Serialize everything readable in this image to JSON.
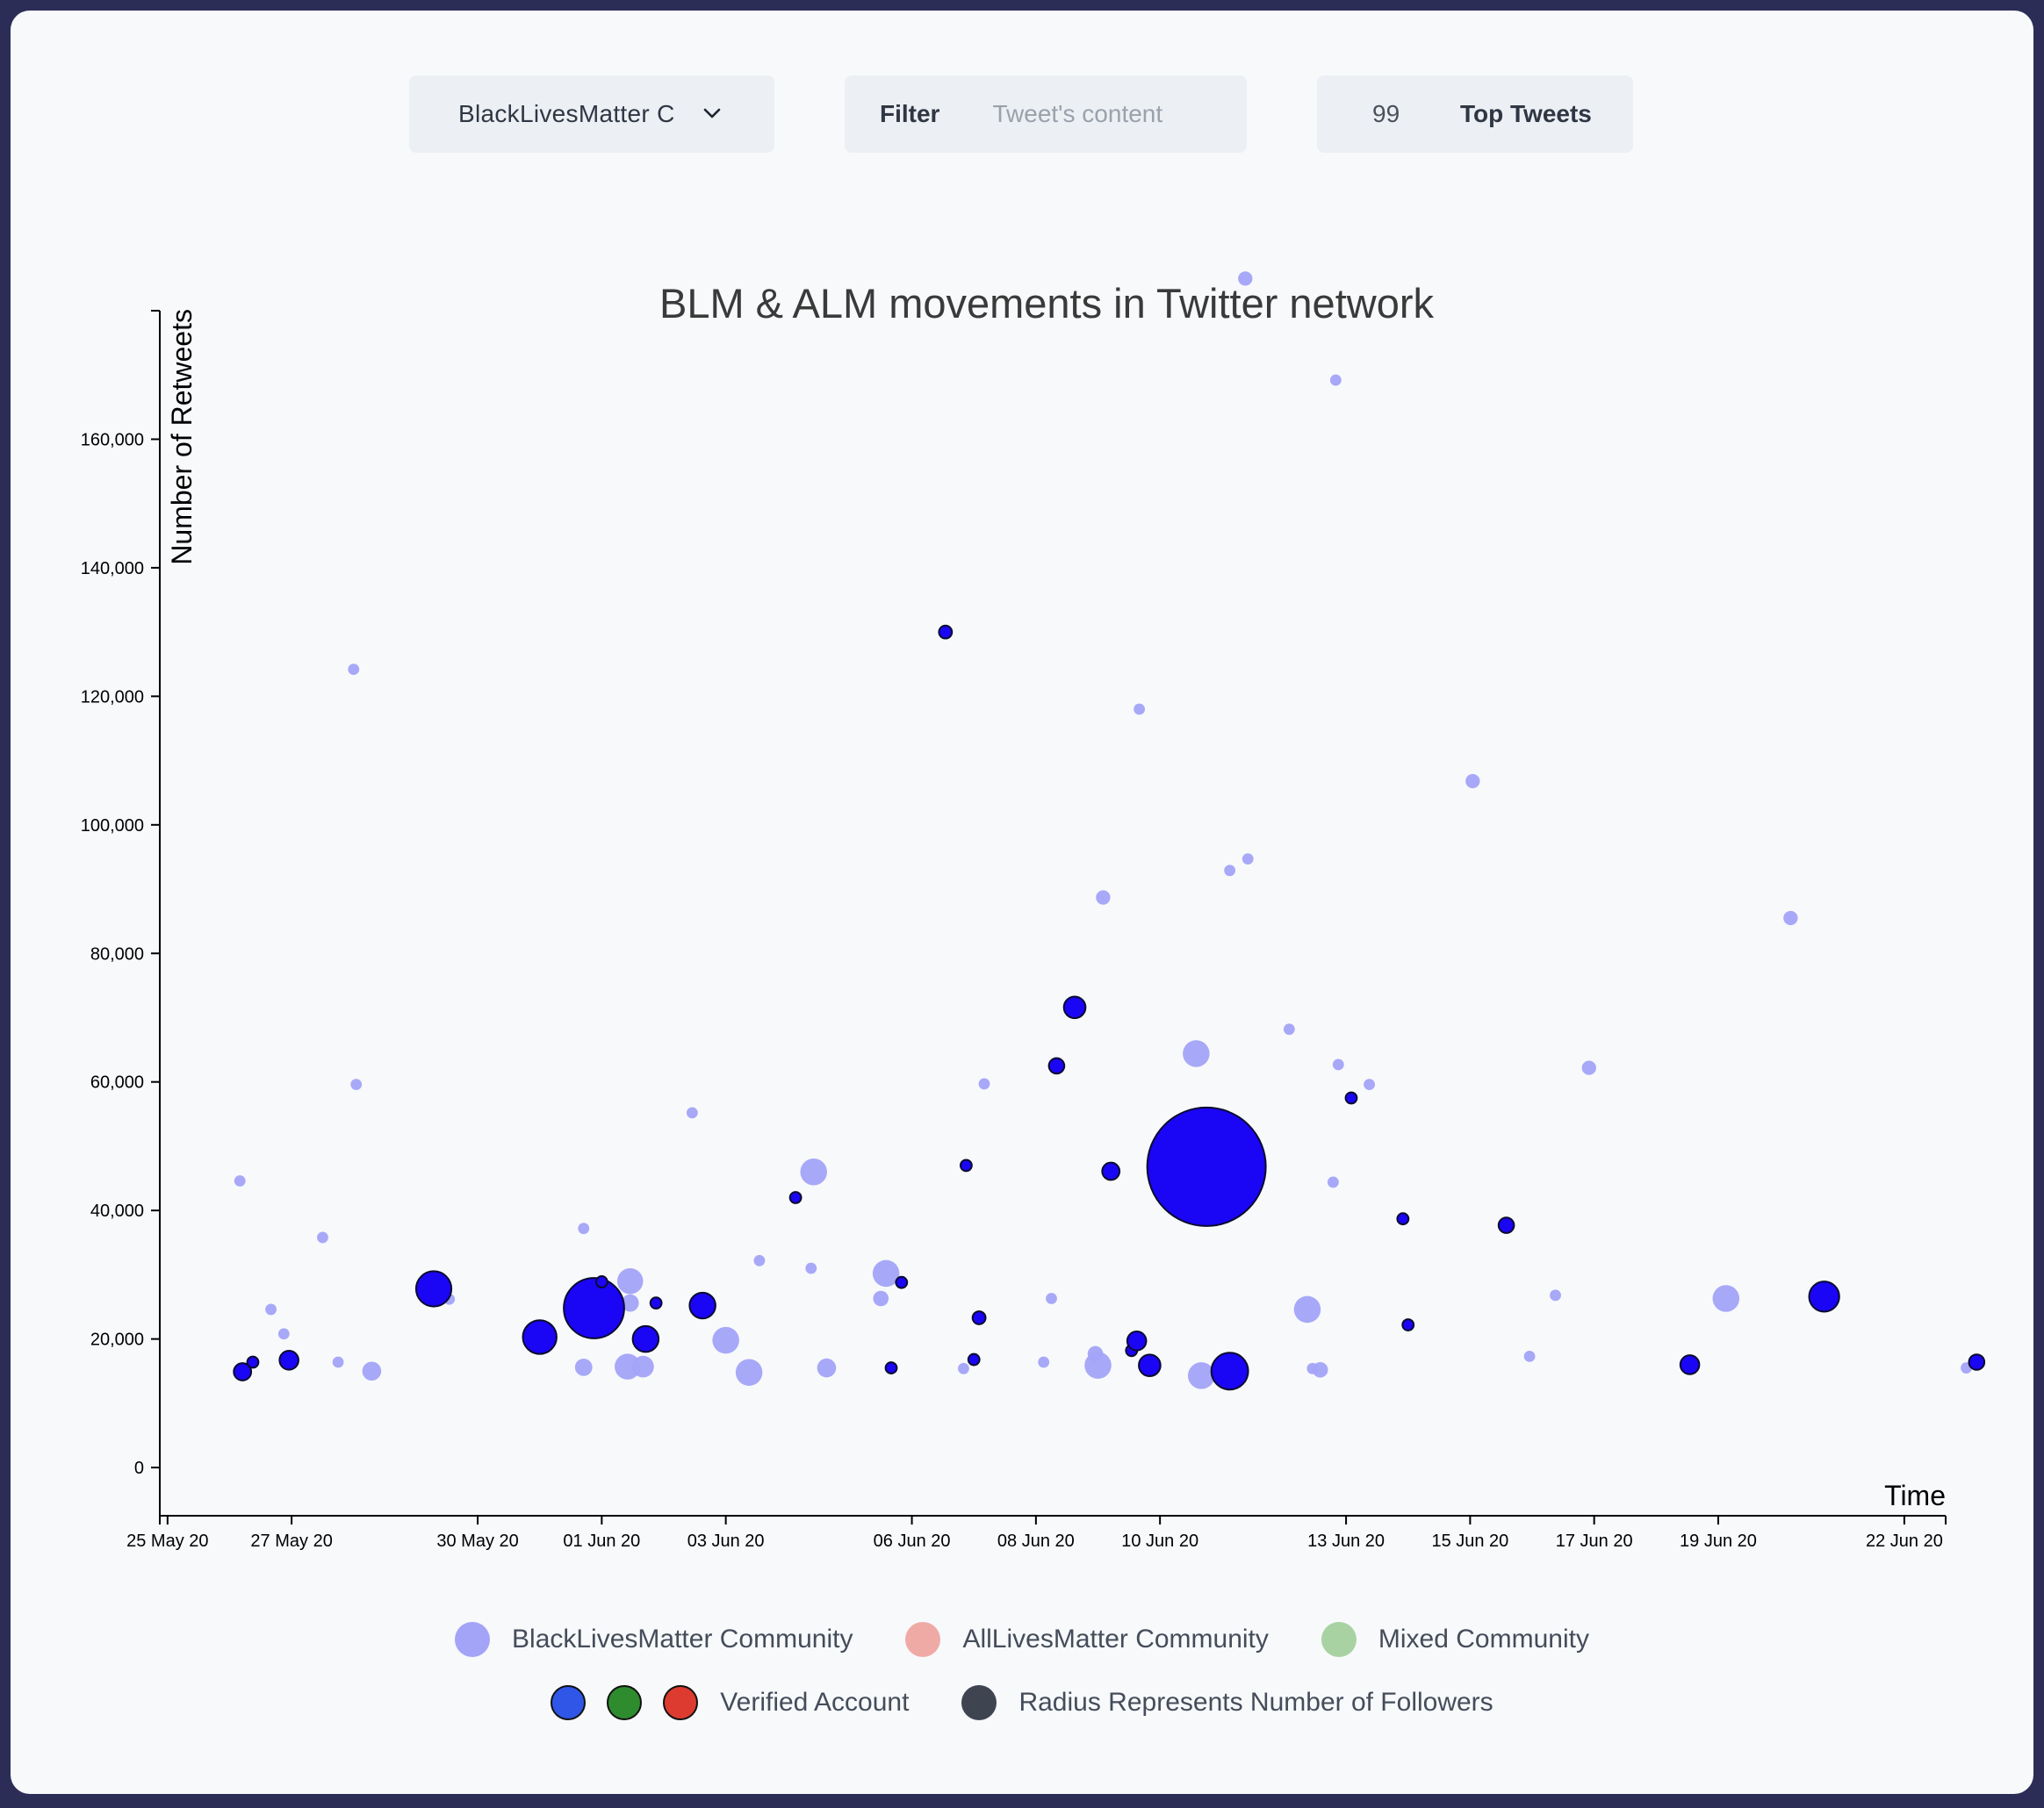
{
  "controls": {
    "community_select": "BlackLivesMatter C",
    "filter_label": "Filter",
    "filter_placeholder": "Tweet's content",
    "filter_value": "",
    "top_count": "99",
    "top_label": "Top Tweets"
  },
  "legend": {
    "blm": {
      "label": "BlackLivesMatter Community",
      "color": "#a3a3f8"
    },
    "alm": {
      "label": "AllLivesMatter Community",
      "color": "#f0aaa6"
    },
    "mixed": {
      "label": "Mixed Community",
      "color": "#a9d2a3"
    },
    "verified": {
      "label": "Verified Account",
      "colors": [
        "#2f56e6",
        "#2e8b2e",
        "#dd3b30"
      ]
    },
    "radius": {
      "label": "Radius Represents Number of Followers",
      "color": "#3e4550"
    }
  },
  "colors": {
    "blm_fill": "#a3a3f8",
    "verified_fill": "#1a05f5",
    "axis": "#000000",
    "title": "#3a3a3a"
  },
  "chart_data": {
    "type": "scatter",
    "title": "BLM & ALM movements in Twitter network",
    "xlabel": "Time",
    "ylabel": "Number of Retweets",
    "xlim": [
      "2020-05-24T21:00",
      "2020-06-22T16:00"
    ],
    "ylim": [
      -7500,
      180000
    ],
    "x_ticks": [
      {
        "date": "2020-05-25",
        "label": "25 May 20"
      },
      {
        "date": "2020-05-27",
        "label": "27 May 20"
      },
      {
        "date": "2020-05-30",
        "label": "30 May 20"
      },
      {
        "date": "2020-06-01",
        "label": "01 Jun 20"
      },
      {
        "date": "2020-06-03",
        "label": "03 Jun 20"
      },
      {
        "date": "2020-06-06",
        "label": "06 Jun 20"
      },
      {
        "date": "2020-06-08",
        "label": "08 Jun 20"
      },
      {
        "date": "2020-06-10",
        "label": "10 Jun 20"
      },
      {
        "date": "2020-06-13",
        "label": "13 Jun 20"
      },
      {
        "date": "2020-06-15",
        "label": "15 Jun 20"
      },
      {
        "date": "2020-06-17",
        "label": "17 Jun 20"
      },
      {
        "date": "2020-06-19",
        "label": "19 Jun 20"
      },
      {
        "date": "2020-06-22",
        "label": "22 Jun 20"
      }
    ],
    "y_ticks": [
      {
        "value": 0,
        "label": "0"
      },
      {
        "value": 20000,
        "label": "20,000"
      },
      {
        "value": 40000,
        "label": "40,000"
      },
      {
        "value": 60000,
        "label": "60,000"
      },
      {
        "value": 80000,
        "label": "80,000"
      },
      {
        "value": 100000,
        "label": "100,000"
      },
      {
        "value": 120000,
        "label": "120,000"
      },
      {
        "value": 140000,
        "label": "140,000"
      },
      {
        "value": 160000,
        "label": "160,000"
      }
    ],
    "series": [
      {
        "name": "BlackLivesMatter Community",
        "points": [
          {
            "x": "2020-05-26T04:00",
            "y": 44600,
            "followers": 1
          },
          {
            "x": "2020-05-26T16:00",
            "y": 24600,
            "followers": 1
          },
          {
            "x": "2020-05-26T21:00",
            "y": 20800,
            "followers": 1
          },
          {
            "x": "2020-05-27T12:00",
            "y": 35800,
            "followers": 1
          },
          {
            "x": "2020-05-27T18:00",
            "y": 16400,
            "followers": 1
          },
          {
            "x": "2020-05-28T00:00",
            "y": 124200,
            "followers": 1
          },
          {
            "x": "2020-05-28T01:00",
            "y": 59600,
            "followers": 1
          },
          {
            "x": "2020-05-28T07:00",
            "y": 15000,
            "followers": 8
          },
          {
            "x": "2020-05-29T13:00",
            "y": 26200,
            "followers": 1
          },
          {
            "x": "2020-05-31T17:00",
            "y": 37200,
            "followers": 1
          },
          {
            "x": "2020-05-31T17:00",
            "y": 15600,
            "followers": 6
          },
          {
            "x": "2020-06-01T11:00",
            "y": 29000,
            "followers": 20
          },
          {
            "x": "2020-06-01T11:00",
            "y": 25600,
            "followers": 6
          },
          {
            "x": "2020-06-01T10:00",
            "y": 15700,
            "followers": 20
          },
          {
            "x": "2020-06-01T16:00",
            "y": 15700,
            "followers": 12
          },
          {
            "x": "2020-06-02T11:00",
            "y": 55200,
            "followers": 1
          },
          {
            "x": "2020-06-03T13:00",
            "y": 32200,
            "followers": 1
          },
          {
            "x": "2020-06-03T00:00",
            "y": 19800,
            "followers": 22
          },
          {
            "x": "2020-06-03T09:00",
            "y": 14800,
            "followers": 22
          },
          {
            "x": "2020-06-04T09:00",
            "y": 31000,
            "followers": 1
          },
          {
            "x": "2020-06-04T10:00",
            "y": 46000,
            "followers": 22
          },
          {
            "x": "2020-06-04T15:00",
            "y": 15500,
            "followers": 8
          },
          {
            "x": "2020-06-05T12:00",
            "y": 26300,
            "followers": 4
          },
          {
            "x": "2020-06-05T14:00",
            "y": 30200,
            "followers": 22
          },
          {
            "x": "2020-06-06T20:00",
            "y": 15400,
            "followers": 1
          },
          {
            "x": "2020-06-07T04:00",
            "y": 59700,
            "followers": 1
          },
          {
            "x": "2020-06-08T03:00",
            "y": 16400,
            "followers": 1
          },
          {
            "x": "2020-06-08T06:00",
            "y": 26300,
            "followers": 1
          },
          {
            "x": "2020-06-08T23:00",
            "y": 17700,
            "followers": 4
          },
          {
            "x": "2020-06-09T00:00",
            "y": 15900,
            "followers": 22
          },
          {
            "x": "2020-06-09T02:00",
            "y": 88700,
            "followers": 3
          },
          {
            "x": "2020-06-09T16:00",
            "y": 118000,
            "followers": 1
          },
          {
            "x": "2020-06-10T14:00",
            "y": 64400,
            "followers": 22
          },
          {
            "x": "2020-06-10T16:00",
            "y": 14300,
            "followers": 22
          },
          {
            "x": "2020-06-11T03:00",
            "y": 92900,
            "followers": 1
          },
          {
            "x": "2020-06-11T10:00",
            "y": 94700,
            "followers": 1
          },
          {
            "x": "2020-06-11T09:00",
            "y": 185000,
            "followers": 3
          },
          {
            "x": "2020-06-12T02:00",
            "y": 68200,
            "followers": 1
          },
          {
            "x": "2020-06-12T09:00",
            "y": 24600,
            "followers": 22
          },
          {
            "x": "2020-06-12T11:00",
            "y": 15400,
            "followers": 1
          },
          {
            "x": "2020-06-12T14:00",
            "y": 15200,
            "followers": 4
          },
          {
            "x": "2020-06-12T19:00",
            "y": 44400,
            "followers": 1
          },
          {
            "x": "2020-06-12T20:00",
            "y": 169200,
            "followers": 1
          },
          {
            "x": "2020-06-12T21:00",
            "y": 62700,
            "followers": 1
          },
          {
            "x": "2020-06-13T09:00",
            "y": 59600,
            "followers": 1
          },
          {
            "x": "2020-06-15T01:00",
            "y": 106800,
            "followers": 3
          },
          {
            "x": "2020-06-15T23:00",
            "y": 17300,
            "followers": 1
          },
          {
            "x": "2020-06-16T09:00",
            "y": 26800,
            "followers": 1
          },
          {
            "x": "2020-06-16T22:00",
            "y": 62200,
            "followers": 3
          },
          {
            "x": "2020-06-19T03:00",
            "y": 26300,
            "followers": 22
          },
          {
            "x": "2020-06-20T04:00",
            "y": 85500,
            "followers": 3
          },
          {
            "x": "2020-06-23T00:00",
            "y": 15500,
            "followers": 1
          }
        ]
      },
      {
        "name": "Verified Account",
        "points": [
          {
            "x": "2020-05-26T05:00",
            "y": 14900,
            "followers": 6
          },
          {
            "x": "2020-05-26T09:00",
            "y": 16400,
            "followers": 1
          },
          {
            "x": "2020-05-26T23:00",
            "y": 16700,
            "followers": 8
          },
          {
            "x": "2020-05-29T07:00",
            "y": 27800,
            "followers": 45
          },
          {
            "x": "2020-05-31T00:00",
            "y": 20300,
            "followers": 40
          },
          {
            "x": "2020-05-31T21:00",
            "y": 24800,
            "followers": 160
          },
          {
            "x": "2020-06-01T00:00",
            "y": 28900,
            "followers": 1
          },
          {
            "x": "2020-06-01T17:00",
            "y": 20000,
            "followers": 20
          },
          {
            "x": "2020-06-01T21:00",
            "y": 25600,
            "followers": 1
          },
          {
            "x": "2020-06-02T15:00",
            "y": 25200,
            "followers": 20
          },
          {
            "x": "2020-06-04T03:00",
            "y": 42000,
            "followers": 1
          },
          {
            "x": "2020-06-05T16:00",
            "y": 15500,
            "followers": 1
          },
          {
            "x": "2020-06-05T20:00",
            "y": 28800,
            "followers": 1
          },
          {
            "x": "2020-06-06T13:00",
            "y": 130000,
            "followers": 2
          },
          {
            "x": "2020-06-06T21:00",
            "y": 47000,
            "followers": 1
          },
          {
            "x": "2020-06-07T00:00",
            "y": 16800,
            "followers": 1
          },
          {
            "x": "2020-06-07T02:00",
            "y": 23300,
            "followers": 2
          },
          {
            "x": "2020-06-08T08:00",
            "y": 62500,
            "followers": 4
          },
          {
            "x": "2020-06-08T15:00",
            "y": 71600,
            "followers": 12
          },
          {
            "x": "2020-06-09T05:00",
            "y": 46100,
            "followers": 6
          },
          {
            "x": "2020-06-09T13:00",
            "y": 18200,
            "followers": 1
          },
          {
            "x": "2020-06-09T15:00",
            "y": 19700,
            "followers": 8
          },
          {
            "x": "2020-06-09T20:00",
            "y": 15900,
            "followers": 12
          },
          {
            "x": "2020-06-10T18:00",
            "y": 46800,
            "followers": 700
          },
          {
            "x": "2020-06-11T03:00",
            "y": 15000,
            "followers": 50
          },
          {
            "x": "2020-06-13T02:00",
            "y": 57500,
            "followers": 1
          },
          {
            "x": "2020-06-13T22:00",
            "y": 38700,
            "followers": 1
          },
          {
            "x": "2020-06-14T00:00",
            "y": 22200,
            "followers": 1
          },
          {
            "x": "2020-06-15T14:00",
            "y": 37700,
            "followers": 4
          },
          {
            "x": "2020-06-18T13:00",
            "y": 16000,
            "followers": 8
          },
          {
            "x": "2020-06-20T17:00",
            "y": 26600,
            "followers": 30
          },
          {
            "x": "2020-06-23T04:00",
            "y": 16400,
            "followers": 4
          }
        ]
      }
    ]
  }
}
